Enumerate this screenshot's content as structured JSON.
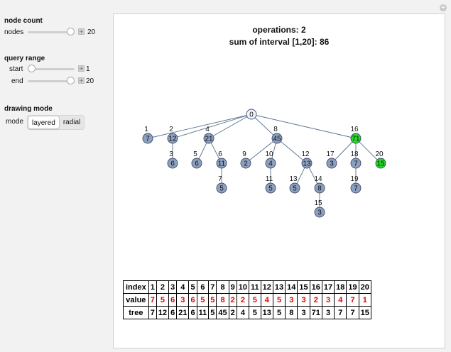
{
  "panel": {
    "node_count": {
      "title": "node count",
      "nodes_label": "nodes",
      "nodes_value": "20",
      "nodes_fraction": 1.0
    },
    "query_range": {
      "title": "query range",
      "start_label": "start",
      "start_value": "1",
      "start_fraction": 0.0,
      "end_label": "end",
      "end_value": "20",
      "end_fraction": 1.0
    },
    "drawing_mode": {
      "title": "drawing mode",
      "mode_label": "mode",
      "options": [
        "layered",
        "radial"
      ],
      "selected": "layered"
    }
  },
  "header": {
    "operations": "operations: 2",
    "sum": "sum of interval [1,20]: 86"
  },
  "tree": {
    "colors": {
      "node": "#8da0c0",
      "highlight": "#22dd22",
      "root": "#eef3fb"
    },
    "nodes": [
      {
        "index": "0",
        "value": "0"
      },
      {
        "index": "1",
        "value": "7"
      },
      {
        "index": "2",
        "value": "12"
      },
      {
        "index": "3",
        "value": "6"
      },
      {
        "index": "4",
        "value": "21"
      },
      {
        "index": "5",
        "value": "6"
      },
      {
        "index": "6",
        "value": "11"
      },
      {
        "index": "7",
        "value": "5"
      },
      {
        "index": "8",
        "value": "45"
      },
      {
        "index": "9",
        "value": "2"
      },
      {
        "index": "10",
        "value": "4"
      },
      {
        "index": "11",
        "value": "5"
      },
      {
        "index": "12",
        "value": "13"
      },
      {
        "index": "13",
        "value": "5"
      },
      {
        "index": "14",
        "value": "8"
      },
      {
        "index": "15",
        "value": "3"
      },
      {
        "index": "16",
        "value": "71"
      },
      {
        "index": "17",
        "value": "3"
      },
      {
        "index": "18",
        "value": "7"
      },
      {
        "index": "19",
        "value": "7"
      },
      {
        "index": "20",
        "value": "15"
      }
    ]
  },
  "table": {
    "row_labels": [
      "index",
      "value",
      "tree"
    ],
    "index": [
      "1",
      "2",
      "3",
      "4",
      "5",
      "6",
      "7",
      "8",
      "9",
      "10",
      "11",
      "12",
      "13",
      "14",
      "15",
      "16",
      "17",
      "18",
      "19",
      "20"
    ],
    "value": [
      "7",
      "5",
      "6",
      "3",
      "6",
      "5",
      "5",
      "8",
      "2",
      "2",
      "5",
      "4",
      "5",
      "3",
      "3",
      "2",
      "3",
      "4",
      "7",
      "1"
    ],
    "tree": [
      "7",
      "12",
      "6",
      "21",
      "6",
      "11",
      "5",
      "45",
      "2",
      "4",
      "5",
      "13",
      "5",
      "8",
      "3",
      "71",
      "3",
      "7",
      "7",
      "15"
    ]
  }
}
